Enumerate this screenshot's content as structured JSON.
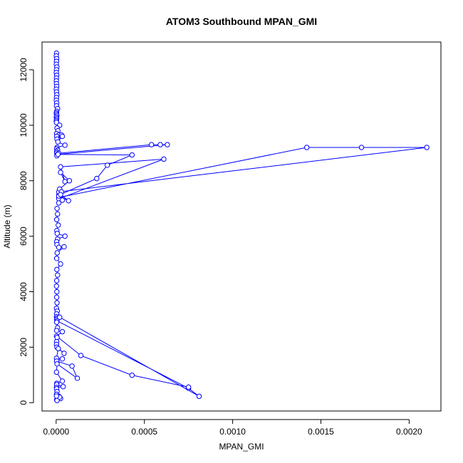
{
  "chart_data": {
    "type": "line",
    "title": "ATOM3 Southbound MPAN_GMI",
    "xlabel": "MPAN_GMI",
    "ylabel": "Altitude (m)",
    "xlim": [
      -8e-05,
      0.00218
    ],
    "ylim": [
      -300,
      13000
    ],
    "xticks": [
      0.0,
      0.0005,
      0.001,
      0.0015,
      0.002
    ],
    "xtick_labels": [
      "0.0000",
      "0.0005",
      "0.0010",
      "0.0015",
      "0.0020"
    ],
    "yticks": [
      0,
      2000,
      4000,
      6000,
      8000,
      10000,
      12000
    ],
    "ytick_labels": [
      "0",
      "2000",
      "4000",
      "6000",
      "8000",
      "10000",
      "12000"
    ],
    "grid": false,
    "legend": "none",
    "color": "#0000ff",
    "marker": "open-circle",
    "series": [
      {
        "x": [
          2e-06,
          1e-06,
          3e-06,
          2e-06,
          1e-06,
          4e-06,
          2e-06,
          1e-06,
          3e-06,
          2e-06,
          1e-06,
          2e-06,
          3e-06,
          1e-06,
          2e-06,
          4e-06,
          2e-06,
          1e-06,
          3e-06,
          2e-06,
          8e-06,
          3e-06,
          1e-06,
          2e-06,
          4e-06,
          1e-06,
          3e-06,
          2e-06,
          1e-06,
          2e-06
        ],
        "y": [
          12600,
          12500,
          12400,
          12300,
          12200,
          12100,
          12000,
          11900,
          11800,
          11700,
          11600,
          11500,
          11400,
          11300,
          11200,
          11100,
          11000,
          10900,
          10800,
          10700,
          10600,
          10500,
          10450,
          10400,
          10350,
          10300,
          10250,
          10200,
          10150,
          10100
        ]
      },
      {
        "x": [
          2e-05,
          5e-06,
          1e-05,
          3e-06,
          1.5e-05,
          3e-06,
          3e-05,
          5e-06,
          3.5e-05,
          1e-05,
          5e-05,
          5e-06,
          3e-06,
          8e-06,
          3e-06,
          3e-06,
          7e-06,
          4e-06
        ],
        "y": [
          10000,
          9900,
          9800,
          9700,
          9650,
          9600,
          9650,
          9500,
          9600,
          9400,
          9280,
          9200,
          9150,
          9100,
          9050,
          9000,
          8950,
          8900
        ]
      },
      {
        "x": [
          1.5e-05,
          0.00054,
          0.00059,
          0.00063,
          1e-05,
          0.00043,
          0.00029,
          0.00023,
          1.5e-05
        ],
        "y": [
          8990,
          9300,
          9300,
          9300,
          8950,
          8930,
          8560,
          8080,
          7480
        ]
      },
      {
        "x": [
          1.5e-05,
          0.00142,
          0.00173,
          0.0021,
          1.5e-05
        ],
        "y": [
          7400,
          9200,
          9200,
          9200,
          7600
        ]
      },
      {
        "x": [
          1.5e-05,
          0.00061,
          2.5e-05,
          5e-05,
          2.5e-05,
          7.5e-05,
          2e-05,
          3e-05,
          1.5e-05,
          7e-05,
          2.5e-05,
          3.5e-05,
          1.5e-05
        ],
        "y": [
          7350,
          8780,
          8500,
          7970,
          8300,
          8000,
          7700,
          7600,
          7450,
          7280,
          7500,
          7300,
          7200
        ]
      },
      {
        "x": [
          5e-06,
          8e-06,
          3e-06,
          1.2e-05,
          4e-06,
          6e-06,
          5e-05,
          8e-06,
          3e-06,
          5e-06,
          1.5e-05,
          4.5e-05,
          6e-06,
          3e-06,
          2.5e-05,
          4e-06,
          8e-06,
          3e-06,
          2e-06,
          4e-06,
          3e-06,
          5e-06,
          2e-06,
          6e-06,
          3e-06,
          2e-06,
          4e-06,
          3e-06
        ],
        "y": [
          7000,
          6800,
          6600,
          6400,
          6200,
          6100,
          6000,
          5900,
          5800,
          5700,
          5600,
          5620,
          5400,
          5200,
          5000,
          4800,
          4600,
          4400,
          4200,
          4000,
          3800,
          3600,
          3400,
          3300,
          3200,
          3100,
          3050,
          3000
        ]
      },
      {
        "x": [
          5e-06,
          0.00075,
          0.00081,
          2e-05,
          3e-06,
          8e-06,
          3e-06,
          3.5e-05,
          2e-06,
          0.00014,
          0.00043,
          0.00075
        ],
        "y": [
          2950,
          520,
          230,
          3080,
          2900,
          2700,
          2600,
          2560,
          2400,
          1700,
          990,
          560
        ]
      },
      {
        "x": [
          5e-06,
          3e-06,
          2e-06,
          4e-06,
          4.5e-05,
          1.2e-05,
          2e-06,
          3.5e-05,
          3e-06,
          9e-05,
          0.00012,
          5e-06,
          2e-06,
          3.5e-05,
          4e-06,
          3e-06,
          4e-05,
          2e-06,
          3e-06,
          5e-06,
          2e-06,
          1.5e-05,
          2.5e-05,
          3e-06,
          5e-06,
          2e-05,
          2e-06
        ],
        "y": [
          2350,
          2200,
          2100,
          2000,
          1780,
          1950,
          1600,
          1580,
          1500,
          1320,
          880,
          1400,
          1100,
          780,
          700,
          650,
          580,
          550,
          500,
          400,
          300,
          230,
          150,
          100,
          80,
          200,
          240
        ]
      }
    ]
  }
}
